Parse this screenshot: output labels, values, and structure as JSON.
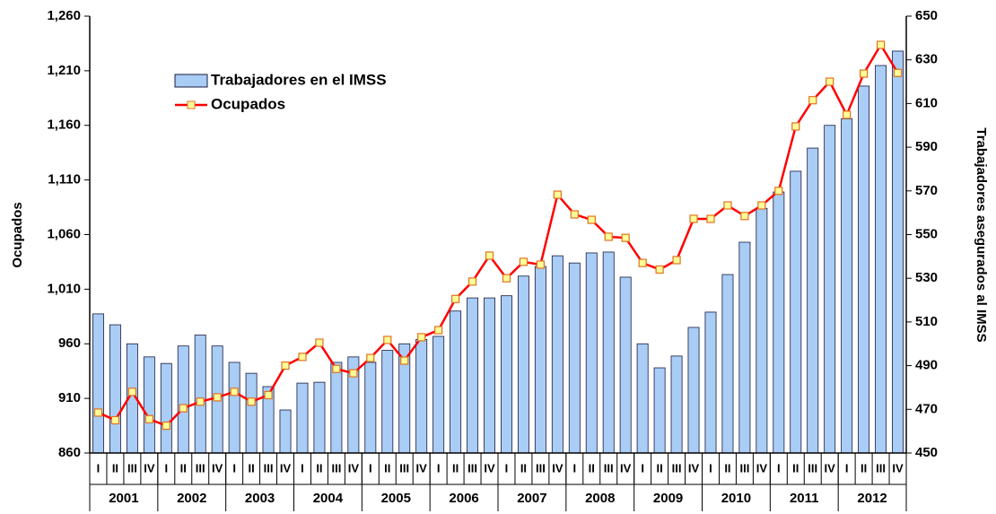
{
  "chart_data": {
    "type": "bar_line",
    "y_label": "Ocupados",
    "y2_label": "Trabajadores asegurados al IMSS",
    "categories": [
      "I",
      "II",
      "III",
      "IV",
      "I",
      "II",
      "III",
      "IV",
      "I",
      "II",
      "III",
      "IV",
      "I",
      "II",
      "III",
      "IV",
      "I",
      "II",
      "III",
      "IV",
      "I",
      "II",
      "III",
      "IV",
      "I",
      "II",
      "III",
      "IV",
      "I",
      "II",
      "III",
      "IV",
      "I",
      "II",
      "III",
      "IV",
      "I",
      "II",
      "III",
      "IV",
      "I",
      "II",
      "III",
      "IV",
      "I",
      "II",
      "III",
      "IV"
    ],
    "years": [
      "2001",
      "2002",
      "2003",
      "2004",
      "2005",
      "2006",
      "2007",
      "2008",
      "2009",
      "2010",
      "2011",
      "2012"
    ],
    "series": [
      {
        "name": "Trabajadores en el IMSS",
        "kind": "bar",
        "axis": "y2",
        "color": "#a9cdf5",
        "values": [
          513.7,
          508.7,
          500,
          494,
          491,
          499,
          504,
          499,
          491.5,
          486.5,
          480.4,
          469.7,
          482,
          482.4,
          491.5,
          494,
          491.5,
          497,
          500,
          502,
          503.4,
          515,
          521,
          521,
          522,
          531,
          535.4,
          540.3,
          537,
          541.6,
          542,
          530.5,
          500,
          489,
          494.4,
          507.5,
          514.5,
          531.7,
          546.5,
          562,
          569.5,
          579,
          589.6,
          600,
          603,
          618,
          627.4,
          634
        ]
      },
      {
        "name": "Ocupados",
        "kind": "line",
        "axis": "y",
        "color": "#ff0000",
        "values": [
          897,
          890,
          916,
          891,
          885,
          901,
          907,
          911,
          916,
          907,
          913,
          940,
          948,
          961,
          937,
          933,
          947,
          963.5,
          944.6,
          966,
          972.5,
          1001,
          1017,
          1040.7,
          1020,
          1035,
          1032.5,
          1096.5,
          1078.5,
          1073.5,
          1058,
          1057,
          1034,
          1028,
          1036.6,
          1074.4,
          1074.4,
          1086.7,
          1077,
          1086.7,
          1100,
          1159,
          1183,
          1200,
          1169.7,
          1207.4,
          1233.7,
          1208
        ]
      }
    ],
    "ylim": [
      860,
      1260
    ],
    "yticks": [
      860,
      910,
      960,
      {
        "value": 1010,
        "label": "1,010"
      },
      {
        "value": 1060,
        "label": "1,060"
      },
      {
        "value": 1110,
        "label": "1,110"
      },
      {
        "value": 1160,
        "label": "1,160"
      },
      {
        "value": 1210,
        "label": "1,210"
      },
      {
        "value": 1260,
        "label": "1,260"
      }
    ],
    "y2lim": [
      450,
      650
    ],
    "y2ticks": [
      450,
      470,
      490,
      510,
      530,
      550,
      570,
      590,
      610,
      630,
      650
    ],
    "grid": false,
    "legend": "top-left"
  }
}
